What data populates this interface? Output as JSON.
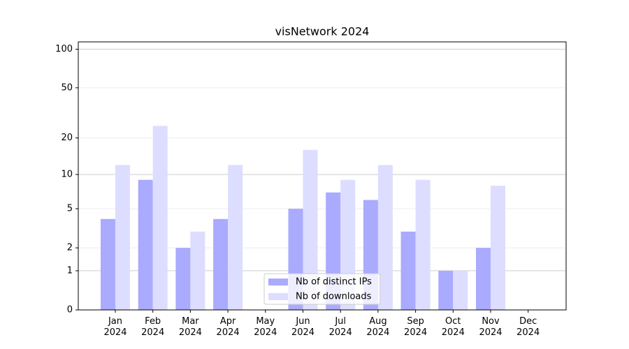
{
  "chart_data": {
    "type": "bar",
    "title": "visNetwork 2024",
    "scale": "log1p",
    "categories": [
      "Jan\n2024",
      "Feb\n2024",
      "Mar\n2024",
      "Apr\n2024",
      "May\n2024",
      "Jun\n2024",
      "Jul\n2024",
      "Aug\n2024",
      "Sep\n2024",
      "Oct\n2024",
      "Nov\n2024",
      "Dec\n2024"
    ],
    "series": [
      {
        "name": "Nb of distinct IPs",
        "color": "#aaaaff",
        "values": [
          4,
          9,
          2,
          4,
          0,
          5,
          7,
          6,
          3,
          1,
          2,
          0
        ]
      },
      {
        "name": "Nb of downloads",
        "color": "#ddddff",
        "values": [
          12,
          25,
          3,
          12,
          0,
          16,
          9,
          12,
          9,
          1,
          8,
          0
        ]
      }
    ],
    "ylim": [
      0,
      114
    ],
    "yticks": [
      0,
      1,
      2,
      5,
      10,
      20,
      50,
      100
    ],
    "grid": true,
    "legend": "lower center"
  }
}
